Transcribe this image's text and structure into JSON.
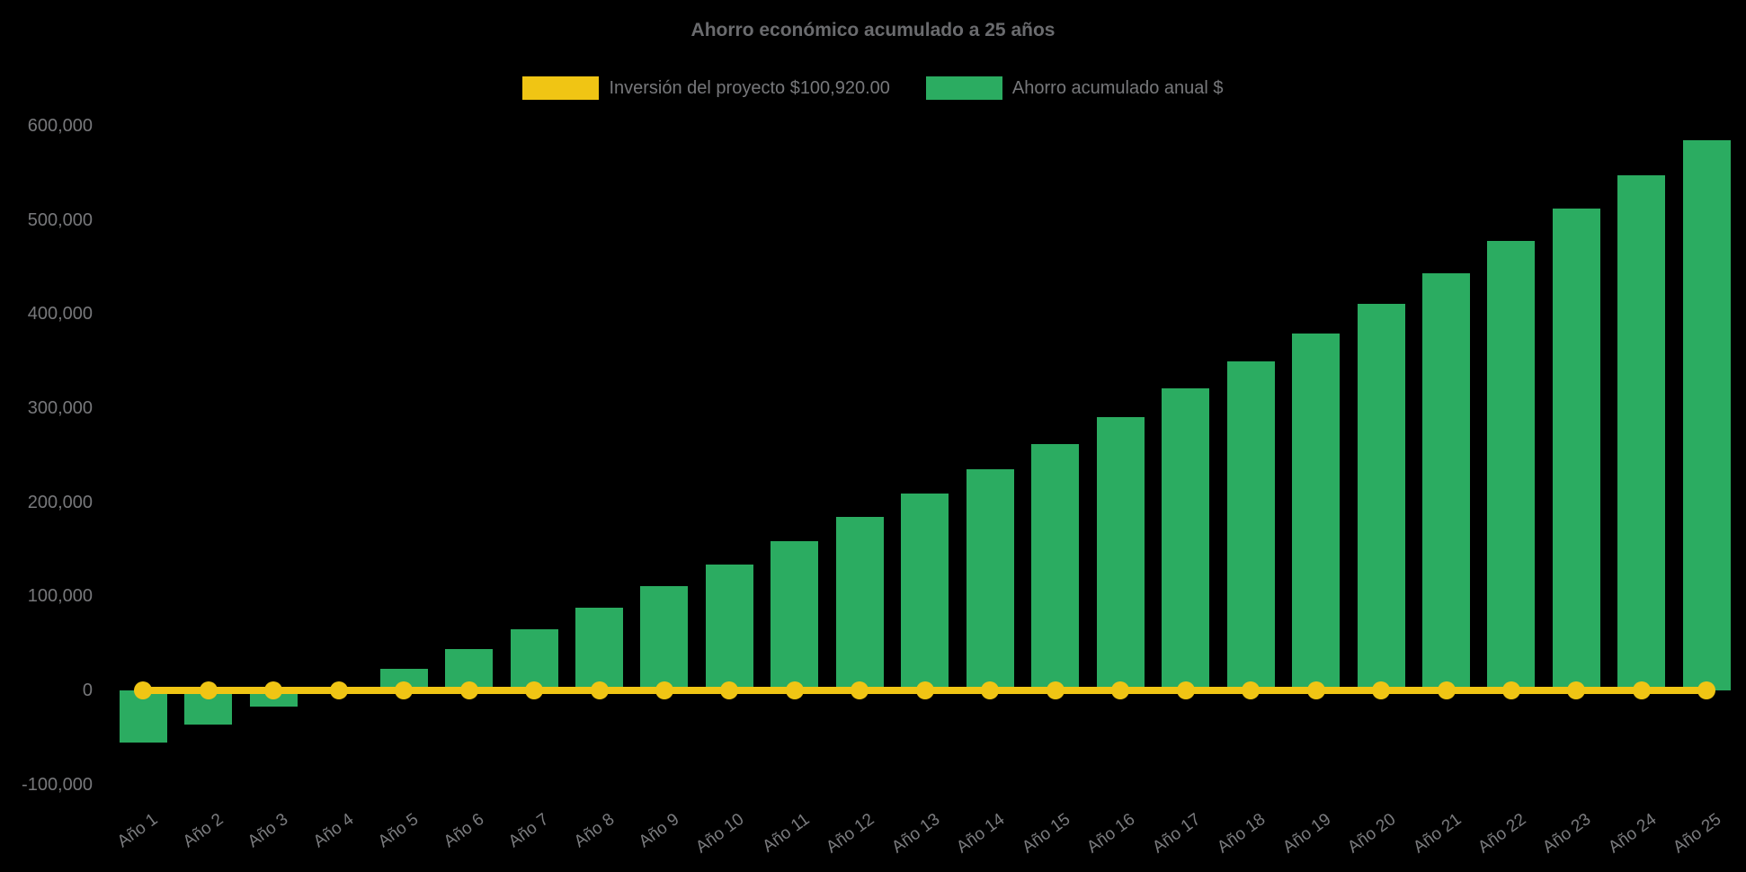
{
  "chart_data": {
    "type": "bar",
    "title": "Ahorro económico acumulado a 25 años",
    "background": "#000000",
    "title_color": "#6A6B6E",
    "label_color": "#77787B",
    "legend_position": "top",
    "grid": false,
    "xlabel": "",
    "ylabel": "",
    "ylim": [
      -100000,
      600000
    ],
    "categories": [
      "Año 1",
      "Año 2",
      "Año 3",
      "Año 4",
      "Año 5",
      "Año 6",
      "Año 7",
      "Año 8",
      "Año 9",
      "Año 10",
      "Año 11",
      "Año 12",
      "Año 13",
      "Año 14",
      "Año 15",
      "Año 16",
      "Año 17",
      "Año 18",
      "Año 19",
      "Año 20",
      "Año 21",
      "Año 22",
      "Año 23",
      "Año 24",
      "Año 25"
    ],
    "series": [
      {
        "name": "Inversión del proyecto $100,920.00",
        "type": "line",
        "color": "#F0C514",
        "values": [
          0,
          0,
          0,
          0,
          0,
          0,
          0,
          0,
          0,
          0,
          0,
          0,
          0,
          0,
          0,
          0,
          0,
          0,
          0,
          0,
          0,
          0,
          0,
          0,
          0
        ]
      },
      {
        "name": "Ahorro acumulado anual $",
        "type": "bar",
        "color": "#2BAC61",
        "values": [
          -55000,
          -36500,
          -17500,
          2000,
          23000,
          44000,
          65000,
          88000,
          111000,
          133500,
          159000,
          184000,
          209000,
          234500,
          262000,
          290500,
          320500,
          350000,
          379500,
          411000,
          443500,
          478000,
          511500,
          547000,
          584500
        ]
      }
    ],
    "y_ticks": {
      "values": [
        600000,
        500000,
        400000,
        300000,
        200000,
        100000,
        0,
        -100000
      ],
      "labels": [
        "600,000",
        "500,000",
        "400,000",
        "300,000",
        "200,000",
        "100,000",
        "0",
        "-100,000"
      ]
    }
  }
}
